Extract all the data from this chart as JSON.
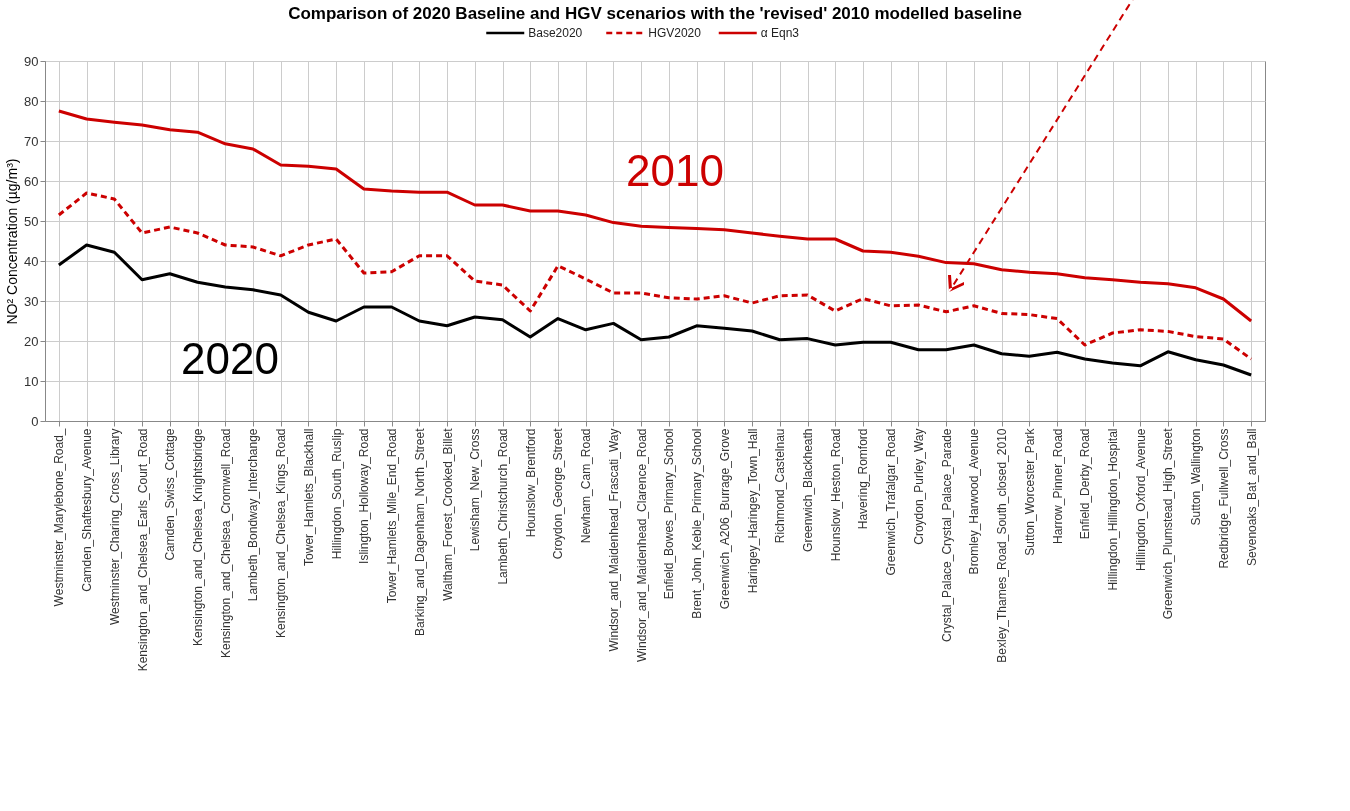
{
  "chart_data": {
    "type": "line",
    "title": "Comparison of 2020 Baseline and HGV scenarios with the 'revised' 2010 modelled baseline",
    "ylabel": "NO² Concentration (µg/m³)",
    "categories": [
      "Westminster_Marylebone_Road_",
      "Camden_Shaftesbury_Avenue",
      "Westminster_Charing_Cross_Library",
      "Kensington_and_Chelsea_Earls_Court_Road",
      "Camden_Swiss_Cottage",
      "Kensington_and_Chelsea_Knightsbridge",
      "Kensington_and_Chelsea_Cromwell_Road",
      "Lambeth_Bondway_Interchange",
      "Kensington_and_Chelsea_Kings_Road",
      "Tower_Hamlets_Blackhall",
      "Hillingdon_South_Ruslip",
      "Islington_Holloway_Road",
      "Tower_Hamlets_Mile_End_Road",
      "Barking_and_Dagenham_North_Street",
      "Waltham_Forest_Crooked_Billet",
      "Lewisham_New_Cross",
      "Lambeth_Christchurch_Road",
      "Hounslow_Brentford",
      "Croydon_George_Street",
      "Newham_Cam_Road",
      "Windsor_and_Maidenhead_Frascati_Way",
      "Windsor_and_Maidenhead_Clarence_Road",
      "Enfield_Bowes_Primary_School",
      "Brent_John_Keble_Primary_School",
      "Greenwich_A206_Burrage_Grove",
      "Haringey_Haringey_Town_Hall",
      "Richmond_Castelnau",
      "Greenwich_Blackheath",
      "Hounslow_Heston_Road",
      "Havering_Romford",
      "Greenwich_Trafalgar_Road",
      "Croydon_Purley_Way",
      "Crystal_Palace_Crystal_Palace_Parade",
      "Bromley_Harwood_Avenue",
      "Bexley_Thames_Road_South_closed_2010",
      "Sutton_Worcester_Park",
      "Harrow_Pinner_Road",
      "Enfield_Derby_Road",
      "Hillingdon_Hillingdon_Hospital",
      "Hillingdon_Oxford_Avenue",
      "Greenwich_Plumstead_High_Street",
      "Sutton_Wallington",
      "Redbridge_Fullwell_Cross",
      "Sevenoaks_Bat_and_Ball"
    ],
    "series": [
      {
        "name": "Base2020",
        "color": "#000000",
        "line_style": "solid",
        "values": [
          39,
          44,
          42.2,
          35.3,
          36.8,
          34.7,
          33.5,
          32.8,
          31.5,
          27.2,
          25,
          28.5,
          28.5,
          25,
          23.8,
          26,
          25.3,
          21,
          25.6,
          22.8,
          24.4,
          20.3,
          21,
          23.8,
          23.2,
          22.5,
          20.3,
          20.6,
          19,
          19.7,
          19.7,
          17.8,
          17.8,
          19,
          16.8,
          16.2,
          17.2,
          15.5,
          14.5,
          13.8,
          17.3,
          15.3,
          14,
          11.5
        ]
      },
      {
        "name": "HGV2020",
        "color": "#cc0000",
        "line_style": "dashed",
        "values": [
          51.5,
          57,
          55.5,
          47,
          48.5,
          47,
          44,
          43.5,
          41.3,
          44,
          45.5,
          37,
          37.3,
          41.3,
          41.3,
          35,
          34,
          27.5,
          38.8,
          35.5,
          32,
          32,
          30.8,
          30.5,
          31.3,
          29.5,
          31.3,
          31.5,
          27.5,
          30.6,
          28.8,
          29,
          27.3,
          28.8,
          26.9,
          26.6,
          25.6,
          19,
          22,
          22.8,
          22.4,
          21.1,
          20.5,
          15.5
        ]
      },
      {
        "name": "α Eqn3",
        "color": "#cc0000",
        "line_style": "solid",
        "values": [
          77.5,
          75.5,
          74.7,
          74,
          72.8,
          72.2,
          69.3,
          68,
          64,
          63.7,
          63,
          58,
          57.5,
          57.2,
          57.2,
          54,
          54,
          52.5,
          52.5,
          51.5,
          49.6,
          48.7,
          48.4,
          48.1,
          47.8,
          47,
          46.2,
          45.5,
          45.5,
          42.5,
          42.2,
          41.2,
          39.6,
          39.3,
          37.8,
          37.2,
          36.8,
          35.8,
          35.3,
          34.7,
          34.3,
          33.3,
          30.5,
          25
        ]
      }
    ],
    "annotations": [
      "2010",
      "2020"
    ],
    "ylim": [
      0,
      90
    ],
    "yticks": [
      0,
      10,
      20,
      30,
      40,
      50,
      60,
      70,
      80,
      90
    ],
    "grid": true,
    "legend": "top"
  }
}
